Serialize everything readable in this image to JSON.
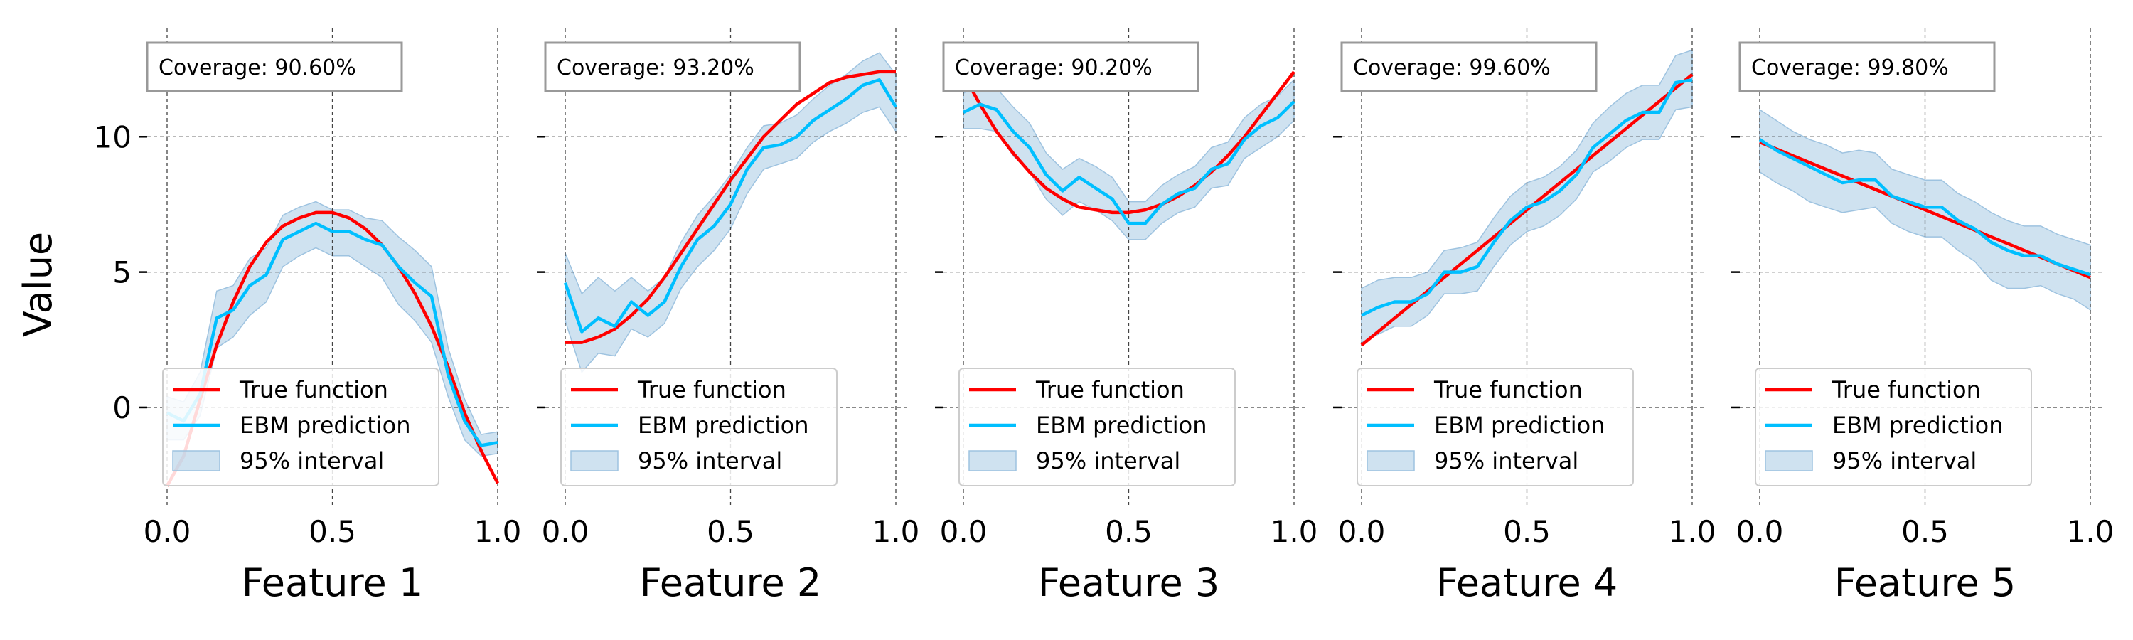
{
  "figure": {
    "ylabel": "Value"
  },
  "colors": {
    "true_function": "#ff0000",
    "ebm_prediction": "#00bfff",
    "interval_fill": "#b6d3e8",
    "interval_edge": "#9ec3e0",
    "grid": "#444444",
    "box_edge": "#999999"
  },
  "chart_data": [
    {
      "type": "line",
      "xlabel": "Feature 1",
      "ylabel": "Value",
      "coverage_label": "Coverage: 90.60%",
      "xlim": [
        0,
        1
      ],
      "ylim": [
        -3.6,
        14
      ],
      "xticks": [
        0,
        0.5,
        1
      ],
      "xtick_labels": [
        "0.0",
        "0.5",
        "1.0"
      ],
      "yticks": [
        0,
        5,
        10
      ],
      "ytick_labels": [
        "0",
        "5",
        "10"
      ],
      "grid": true,
      "legend_position": "lower-left",
      "legend": [
        "True function",
        "EBM prediction",
        "95% interval"
      ],
      "x": [
        0,
        0.05,
        0.1,
        0.15,
        0.2,
        0.25,
        0.3,
        0.35,
        0.4,
        0.45,
        0.5,
        0.55,
        0.6,
        0.65,
        0.7,
        0.75,
        0.8,
        0.85,
        0.9,
        0.95,
        1.0
      ],
      "true_function": [
        -2.9,
        -1.8,
        0.3,
        2.3,
        3.9,
        5.2,
        6.1,
        6.7,
        7.0,
        7.2,
        7.2,
        7.0,
        6.6,
        6.0,
        5.2,
        4.2,
        3.0,
        1.5,
        -0.2,
        -1.6,
        -2.8
      ],
      "ebm_prediction": [
        -0.2,
        -0.5,
        0.5,
        3.3,
        3.6,
        4.5,
        4.9,
        6.2,
        6.5,
        6.8,
        6.5,
        6.5,
        6.2,
        6.0,
        5.2,
        4.6,
        4.1,
        1.2,
        -0.5,
        -1.4,
        -1.3
      ],
      "interval_lower": [
        -1.2,
        -1.2,
        -0.3,
        2.2,
        2.6,
        3.4,
        3.9,
        5.2,
        5.6,
        5.9,
        5.6,
        5.6,
        5.2,
        4.8,
        3.8,
        3.2,
        2.4,
        0.4,
        -1.2,
        -1.8,
        -1.7
      ],
      "interval_upper": [
        0.4,
        0.2,
        1.3,
        4.3,
        4.5,
        5.5,
        5.9,
        7.1,
        7.4,
        7.6,
        7.3,
        7.3,
        7.0,
        6.9,
        6.3,
        5.8,
        5.2,
        2.2,
        0.3,
        -1.0,
        -0.9
      ]
    },
    {
      "type": "line",
      "xlabel": "Feature 2",
      "ylabel": "",
      "coverage_label": "Coverage: 93.20%",
      "xlim": [
        0,
        1
      ],
      "ylim": [
        -3.6,
        14
      ],
      "xticks": [
        0,
        0.5,
        1
      ],
      "xtick_labels": [
        "0.0",
        "0.5",
        "1.0"
      ],
      "yticks": [
        0,
        5,
        10
      ],
      "ytick_labels": [
        "",
        "",
        ""
      ],
      "grid": true,
      "legend_position": "lower-left",
      "legend": [
        "True function",
        "EBM prediction",
        "95% interval"
      ],
      "x": [
        0,
        0.05,
        0.1,
        0.15,
        0.2,
        0.25,
        0.3,
        0.35,
        0.4,
        0.45,
        0.5,
        0.55,
        0.6,
        0.65,
        0.7,
        0.75,
        0.8,
        0.85,
        0.9,
        0.95,
        1.0
      ],
      "true_function": [
        2.4,
        2.4,
        2.6,
        2.9,
        3.4,
        4.0,
        4.8,
        5.7,
        6.6,
        7.5,
        8.4,
        9.2,
        10.0,
        10.6,
        11.2,
        11.6,
        12.0,
        12.2,
        12.3,
        12.4,
        12.4
      ],
      "ebm_prediction": [
        4.6,
        2.8,
        3.3,
        3.0,
        3.9,
        3.4,
        3.9,
        5.2,
        6.2,
        6.7,
        7.5,
        8.8,
        9.6,
        9.7,
        10.0,
        10.6,
        11.0,
        11.4,
        11.9,
        12.1,
        11.1
      ],
      "interval_lower": [
        3.2,
        1.3,
        2.0,
        1.9,
        2.9,
        2.6,
        3.1,
        4.4,
        5.2,
        5.8,
        6.6,
        7.9,
        8.8,
        9.0,
        9.2,
        9.8,
        10.2,
        10.5,
        10.9,
        11.1,
        10.2
      ],
      "interval_upper": [
        5.7,
        4.2,
        4.8,
        4.3,
        4.8,
        4.3,
        4.8,
        6.1,
        7.1,
        7.8,
        8.6,
        9.6,
        10.4,
        10.5,
        10.8,
        11.4,
        11.9,
        12.3,
        12.8,
        13.1,
        12.3
      ]
    },
    {
      "type": "line",
      "xlabel": "Feature 3",
      "ylabel": "",
      "coverage_label": "Coverage: 90.20%",
      "xlim": [
        0,
        1
      ],
      "ylim": [
        -3.6,
        14
      ],
      "xticks": [
        0,
        0.5,
        1
      ],
      "xtick_labels": [
        "0.0",
        "0.5",
        "1.0"
      ],
      "yticks": [
        0,
        5,
        10
      ],
      "ytick_labels": [
        "",
        "",
        ""
      ],
      "grid": true,
      "legend_position": "lower-left",
      "legend": [
        "True function",
        "EBM prediction",
        "95% interval"
      ],
      "x": [
        0,
        0.05,
        0.1,
        0.15,
        0.2,
        0.25,
        0.3,
        0.35,
        0.4,
        0.45,
        0.5,
        0.55,
        0.6,
        0.65,
        0.7,
        0.75,
        0.8,
        0.85,
        0.9,
        0.95,
        1.0
      ],
      "true_function": [
        12.3,
        11.2,
        10.2,
        9.4,
        8.7,
        8.1,
        7.7,
        7.4,
        7.3,
        7.2,
        7.2,
        7.3,
        7.5,
        7.8,
        8.2,
        8.7,
        9.3,
        10.0,
        10.8,
        11.6,
        12.4
      ],
      "ebm_prediction": [
        10.9,
        11.2,
        11.0,
        10.2,
        9.6,
        8.6,
        8.0,
        8.5,
        8.1,
        7.7,
        6.8,
        6.8,
        7.5,
        7.9,
        8.1,
        8.8,
        9.0,
        9.9,
        10.4,
        10.7,
        11.3
      ],
      "interval_lower": [
        10.3,
        10.3,
        10.2,
        9.3,
        8.7,
        7.7,
        7.1,
        7.6,
        7.3,
        6.9,
        6.2,
        6.2,
        6.8,
        7.2,
        7.4,
        8.1,
        8.2,
        9.2,
        9.6,
        10.0,
        10.6
      ],
      "interval_upper": [
        11.6,
        12.0,
        11.8,
        11.1,
        10.5,
        9.4,
        8.8,
        9.2,
        8.9,
        8.5,
        7.6,
        7.6,
        8.2,
        8.6,
        8.9,
        9.6,
        9.8,
        10.7,
        11.2,
        11.5,
        12.1
      ]
    },
    {
      "type": "line",
      "xlabel": "Feature 4",
      "ylabel": "",
      "coverage_label": "Coverage: 99.60%",
      "xlim": [
        0,
        1
      ],
      "ylim": [
        -3.6,
        14
      ],
      "xticks": [
        0,
        0.5,
        1
      ],
      "xtick_labels": [
        "0.0",
        "0.5",
        "1.0"
      ],
      "yticks": [
        0,
        5,
        10
      ],
      "ytick_labels": [
        "",
        "",
        ""
      ],
      "grid": true,
      "legend_position": "lower-left",
      "legend": [
        "True function",
        "EBM prediction",
        "95% interval"
      ],
      "x": [
        0,
        0.05,
        0.1,
        0.15,
        0.2,
        0.25,
        0.3,
        0.35,
        0.4,
        0.45,
        0.5,
        0.55,
        0.6,
        0.65,
        0.7,
        0.75,
        0.8,
        0.85,
        0.9,
        0.95,
        1.0
      ],
      "true_function": [
        2.3,
        2.8,
        3.3,
        3.8,
        4.3,
        4.8,
        5.3,
        5.8,
        6.3,
        6.8,
        7.3,
        7.8,
        8.3,
        8.8,
        9.3,
        9.8,
        10.3,
        10.8,
        11.3,
        11.8,
        12.3
      ],
      "ebm_prediction": [
        3.4,
        3.7,
        3.9,
        3.9,
        4.2,
        5.0,
        5.0,
        5.2,
        6.1,
        6.9,
        7.4,
        7.6,
        8.0,
        8.6,
        9.6,
        10.1,
        10.6,
        10.9,
        10.9,
        12.0,
        12.1
      ],
      "interval_lower": [
        2.4,
        2.7,
        3.0,
        3.0,
        3.4,
        4.2,
        4.2,
        4.3,
        5.2,
        6.0,
        6.5,
        6.7,
        7.1,
        7.7,
        8.7,
        9.1,
        9.6,
        9.9,
        9.9,
        11.0,
        11.1
      ],
      "interval_upper": [
        4.4,
        4.7,
        4.8,
        4.8,
        5.0,
        5.8,
        5.9,
        6.1,
        7.0,
        7.8,
        8.3,
        8.5,
        8.9,
        9.5,
        10.5,
        11.1,
        11.6,
        11.9,
        11.9,
        13.0,
        13.2
      ]
    },
    {
      "type": "line",
      "xlabel": "Feature 5",
      "ylabel": "",
      "coverage_label": "Coverage: 99.80%",
      "xlim": [
        0,
        1
      ],
      "ylim": [
        -3.6,
        14
      ],
      "xticks": [
        0,
        0.5,
        1
      ],
      "xtick_labels": [
        "0.0",
        "0.5",
        "1.0"
      ],
      "yticks": [
        0,
        5,
        10
      ],
      "ytick_labels": [
        "",
        "",
        ""
      ],
      "grid": true,
      "legend_position": "lower-left",
      "legend": [
        "True function",
        "EBM prediction",
        "95% interval"
      ],
      "x": [
        0,
        0.05,
        0.1,
        0.15,
        0.2,
        0.25,
        0.3,
        0.35,
        0.4,
        0.45,
        0.5,
        0.55,
        0.6,
        0.65,
        0.7,
        0.75,
        0.8,
        0.85,
        0.9,
        0.95,
        1.0
      ],
      "true_function": [
        9.8,
        9.55,
        9.3,
        9.05,
        8.8,
        8.55,
        8.3,
        8.05,
        7.8,
        7.55,
        7.3,
        7.05,
        6.8,
        6.55,
        6.3,
        6.05,
        5.8,
        5.55,
        5.3,
        5.05,
        4.8
      ],
      "ebm_prediction": [
        9.9,
        9.5,
        9.2,
        8.9,
        8.6,
        8.3,
        8.4,
        8.4,
        7.8,
        7.6,
        7.4,
        7.4,
        6.9,
        6.6,
        6.1,
        5.8,
        5.6,
        5.6,
        5.3,
        5.1,
        4.9
      ],
      "interval_lower": [
        8.7,
        8.3,
        8.0,
        7.6,
        7.4,
        7.2,
        7.3,
        7.4,
        6.8,
        6.5,
        6.3,
        6.3,
        5.8,
        5.4,
        4.7,
        4.4,
        4.4,
        4.5,
        4.2,
        4.0,
        3.6
      ],
      "interval_upper": [
        11.0,
        10.6,
        10.2,
        9.9,
        9.7,
        9.4,
        9.5,
        9.4,
        8.8,
        8.6,
        8.4,
        8.4,
        7.9,
        7.6,
        7.2,
        6.9,
        6.7,
        6.7,
        6.4,
        6.2,
        6.0
      ]
    }
  ]
}
